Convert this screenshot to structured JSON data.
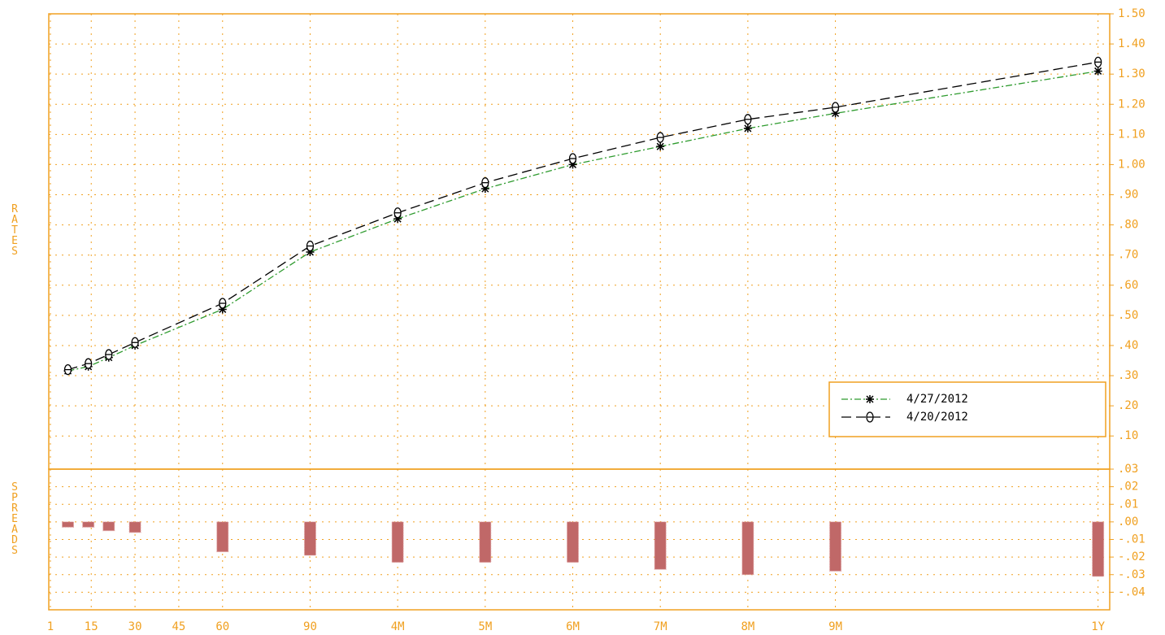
{
  "chart_data": [
    {
      "type": "line",
      "ylabel": "RATES",
      "x": [
        7,
        14,
        21,
        30,
        60,
        90,
        120,
        150,
        180,
        210,
        240,
        270,
        360
      ],
      "series": [
        {
          "name": "4/27/2012",
          "color": "#2e9b2e",
          "marker": "asterisk",
          "values": [
            0.316,
            0.33,
            0.36,
            0.4,
            0.52,
            0.71,
            0.82,
            0.92,
            1.0,
            1.06,
            1.12,
            1.17,
            1.31
          ]
        },
        {
          "name": "4/20/2012",
          "color": "#000000",
          "marker": "circle",
          "values": [
            0.32,
            0.34,
            0.37,
            0.41,
            0.54,
            0.73,
            0.84,
            0.94,
            1.02,
            1.09,
            1.15,
            1.19,
            1.34
          ]
        }
      ],
      "ylim": [
        -0.01,
        1.5
      ],
      "yticks": [
        {
          "value": 1.5,
          "label": "1.50"
        },
        {
          "value": 1.4,
          "label": "1.40"
        },
        {
          "value": 1.3,
          "label": "1.30"
        },
        {
          "value": 1.2,
          "label": "1.20"
        },
        {
          "value": 1.1,
          "label": "1.10"
        },
        {
          "value": 1.0,
          "label": "1.00"
        },
        {
          "value": 0.9,
          "label": ".90"
        },
        {
          "value": 0.8,
          "label": ".80"
        },
        {
          "value": 0.7,
          "label": ".70"
        },
        {
          "value": 0.6,
          "label": ".60"
        },
        {
          "value": 0.5,
          "label": ".50"
        },
        {
          "value": 0.4,
          "label": ".40"
        },
        {
          "value": 0.3,
          "label": ".30"
        },
        {
          "value": 0.2,
          "label": ".20"
        },
        {
          "value": 0.1,
          "label": ".10"
        }
      ],
      "grid": true,
      "legend": "lower right"
    },
    {
      "type": "bar",
      "ylabel": "SPREADS",
      "color": "#c06868",
      "x": [
        7,
        14,
        21,
        30,
        60,
        90,
        120,
        150,
        180,
        210,
        240,
        270,
        360
      ],
      "values": [
        -0.003,
        -0.003,
        -0.005,
        -0.006,
        -0.017,
        -0.019,
        -0.023,
        -0.023,
        -0.023,
        -0.027,
        -0.03,
        -0.028,
        -0.031
      ],
      "ylim": [
        -0.05,
        0.03
      ],
      "yticks": [
        {
          "value": 0.03,
          "label": ".03"
        },
        {
          "value": 0.02,
          "label": ".02"
        },
        {
          "value": 0.01,
          "label": ".01"
        },
        {
          "value": 0,
          "label": ".00"
        },
        {
          "value": -0.01,
          "label": "-.01"
        },
        {
          "value": -0.02,
          "label": "-.02"
        },
        {
          "value": -0.03,
          "label": "-.03"
        },
        {
          "value": -0.04,
          "label": "-.04"
        }
      ],
      "xlim": [
        0.45,
        364
      ],
      "xticks": [
        1,
        15,
        30,
        45,
        60,
        90,
        {
          "value": 120,
          "label": "4M"
        },
        {
          "value": 150,
          "label": "5M"
        },
        {
          "value": 180,
          "label": "6M"
        },
        {
          "value": 210,
          "label": "7M"
        },
        {
          "value": 240,
          "label": "8M"
        },
        {
          "value": 270,
          "label": "9M"
        },
        {
          "value": 360,
          "label": "1Y"
        }
      ],
      "grid": true
    }
  ]
}
